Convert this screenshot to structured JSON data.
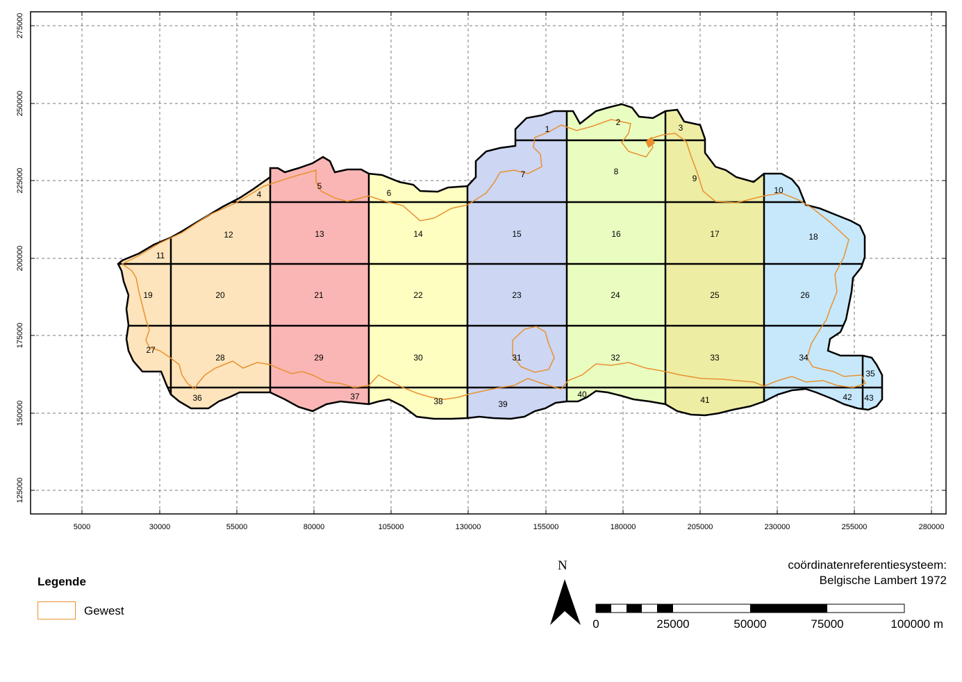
{
  "map": {
    "y_ticks": [
      "275000",
      "250000",
      "225000",
      "200000",
      "175000",
      "150000",
      "125000"
    ],
    "x_ticks": [
      "5000",
      "30000",
      "55000",
      "80000",
      "105000",
      "130000",
      "155000",
      "180000",
      "205000",
      "230000",
      "255000",
      "280000"
    ],
    "zones": [
      {
        "name": "zone-1",
        "color": "#fde4bc"
      },
      {
        "name": "zone-2",
        "color": "#fab6b5"
      },
      {
        "name": "zone-3",
        "color": "#fefec1"
      },
      {
        "name": "zone-4",
        "color": "#cdd6f3"
      },
      {
        "name": "zone-5",
        "color": "#eafdc1"
      },
      {
        "name": "zone-6",
        "color": "#ededa4"
      },
      {
        "name": "zone-7",
        "color": "#c7e8fb"
      }
    ],
    "tile_labels": [
      "1",
      "2",
      "3",
      "4",
      "5",
      "6",
      "7",
      "8",
      "9",
      "10",
      "11",
      "12",
      "13",
      "14",
      "15",
      "16",
      "17",
      "18",
      "19",
      "20",
      "21",
      "22",
      "23",
      "24",
      "25",
      "26",
      "27",
      "28",
      "29",
      "30",
      "31",
      "32",
      "33",
      "34",
      "35",
      "36",
      "37",
      "38",
      "39",
      "40",
      "41",
      "42",
      "43"
    ],
    "boundary_color": "#e8912f"
  },
  "legend": {
    "title": "Legende",
    "items": [
      {
        "label": "Gewest",
        "color": "#e8912f"
      }
    ]
  },
  "north_arrow": {
    "label": "N"
  },
  "scale_bar": {
    "labels": [
      "0",
      "25000",
      "50000",
      "75000",
      "100000 m"
    ]
  },
  "crs": {
    "line1": "coördinatenreferentiesysteem:",
    "line2": "Belgische Lambert 1972"
  }
}
